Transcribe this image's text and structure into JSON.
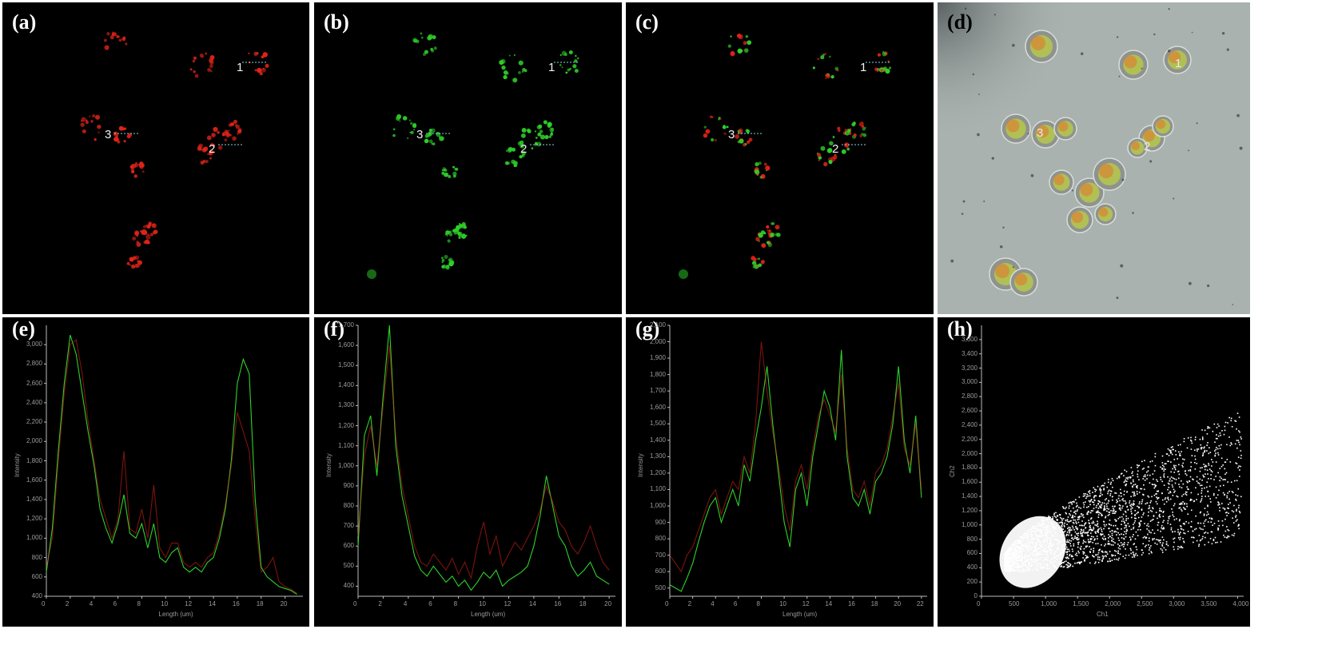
{
  "figure": {
    "panels": [
      {
        "id": "a",
        "label": "(a)",
        "channel": "red",
        "color": "#e02418"
      },
      {
        "id": "b",
        "label": "(b)",
        "channel": "green",
        "color": "#2fd12a"
      },
      {
        "id": "c",
        "label": "(c)",
        "channel": "merge"
      },
      {
        "id": "d",
        "label": "(d)",
        "channel": "brightfield-overlay"
      },
      {
        "id": "e",
        "label": "(e)"
      },
      {
        "id": "f",
        "label": "(f)"
      },
      {
        "id": "g",
        "label": "(g)"
      },
      {
        "id": "h",
        "label": "(h)"
      }
    ],
    "roi_labels": [
      "1",
      "2",
      "3"
    ]
  },
  "colors": {
    "red_channel": "#e02418",
    "green_channel": "#2fd12a",
    "background": "#000000",
    "brightfield": "#a9b2ae"
  },
  "chart_data": [
    {
      "panel": "e",
      "type": "line",
      "xlabel": "Length (um)",
      "ylabel": "Intensity",
      "xlim": [
        0,
        21.5
      ],
      "ylim": [
        400,
        3200
      ],
      "xticks": [
        "0",
        "2",
        "4",
        "6",
        "8",
        "10",
        "12",
        "14",
        "16",
        "18",
        "20"
      ],
      "yticks": [
        "400",
        "600",
        "800",
        "1,000",
        "1,200",
        "1,400",
        "1,600",
        "1,800",
        "2,000",
        "2,200",
        "2,400",
        "2,600",
        "2,800",
        "3,000"
      ],
      "series": [
        {
          "color": "#2fd12a",
          "x": [
            0,
            0.5,
            1,
            1.5,
            2,
            2.5,
            3,
            3.5,
            4,
            4.5,
            5,
            5.5,
            6,
            6.5,
            7,
            7.5,
            8,
            8.5,
            9,
            9.5,
            10,
            10.5,
            11,
            11.5,
            12,
            12.5,
            13,
            13.5,
            14,
            14.5,
            15,
            15.5,
            16,
            16.5,
            17,
            17.5,
            18,
            18.5,
            19,
            19.5,
            20,
            20.5,
            21
          ],
          "y": [
            650,
            1100,
            1900,
            2600,
            3100,
            2900,
            2500,
            2100,
            1750,
            1300,
            1100,
            950,
            1150,
            1450,
            1050,
            1000,
            1150,
            900,
            1150,
            800,
            750,
            850,
            900,
            700,
            650,
            700,
            650,
            750,
            800,
            1000,
            1300,
            1800,
            2600,
            2850,
            2700,
            1400,
            700,
            600,
            550,
            500,
            480,
            460,
            420
          ]
        },
        {
          "color": "#e02418",
          "x": [
            0,
            0.5,
            1,
            1.5,
            2,
            2.5,
            3,
            3.5,
            4,
            4.5,
            5,
            5.5,
            6,
            6.5,
            7,
            7.5,
            8,
            8.5,
            9,
            9.5,
            10,
            10.5,
            11,
            11.5,
            12,
            12.5,
            13,
            13.5,
            14,
            14.5,
            15,
            15.5,
            16,
            16.5,
            17,
            17.5,
            18,
            18.5,
            19,
            19.5,
            20,
            20.5,
            21
          ],
          "y": [
            700,
            1000,
            1800,
            2500,
            3000,
            3050,
            2700,
            2200,
            1800,
            1400,
            1200,
            1000,
            1200,
            1900,
            1100,
            1050,
            1300,
            1000,
            1550,
            900,
            800,
            950,
            950,
            750,
            700,
            750,
            700,
            800,
            850,
            1050,
            1350,
            1750,
            2300,
            2100,
            1900,
            1200,
            650,
            700,
            800,
            550,
            500,
            470,
            430
          ]
        }
      ]
    },
    {
      "panel": "f",
      "type": "line",
      "xlabel": "Length (um)",
      "ylabel": "Intensity",
      "xlim": [
        0,
        20.5
      ],
      "ylim": [
        350,
        1700
      ],
      "xticks": [
        "0",
        "2",
        "4",
        "6",
        "8",
        "10",
        "12",
        "14",
        "16",
        "18",
        "20"
      ],
      "yticks": [
        "400",
        "500",
        "600",
        "700",
        "800",
        "900",
        "1,000",
        "1,100",
        "1,200",
        "1,300",
        "1,400",
        "1,500",
        "1,600",
        "1,700"
      ],
      "series": [
        {
          "color": "#2fd12a",
          "x": [
            0,
            0.5,
            1,
            1.5,
            2,
            2.5,
            3,
            3.5,
            4,
            4.5,
            5,
            5.5,
            6,
            6.5,
            7,
            7.5,
            8,
            8.5,
            9,
            9.5,
            10,
            10.5,
            11,
            11.5,
            12,
            12.5,
            13,
            13.5,
            14,
            14.5,
            15,
            15.5,
            16,
            16.5,
            17,
            17.5,
            18,
            18.5,
            19,
            19.5,
            20
          ],
          "y": [
            600,
            1150,
            1250,
            950,
            1350,
            1700,
            1100,
            850,
            700,
            550,
            480,
            450,
            500,
            460,
            420,
            450,
            400,
            430,
            380,
            420,
            470,
            440,
            480,
            400,
            430,
            450,
            470,
            500,
            600,
            750,
            950,
            800,
            650,
            600,
            500,
            450,
            480,
            520,
            450,
            430,
            410
          ]
        },
        {
          "color": "#e02418",
          "x": [
            0,
            0.5,
            1,
            1.5,
            2,
            2.5,
            3,
            3.5,
            4,
            4.5,
            5,
            5.5,
            6,
            6.5,
            7,
            7.5,
            8,
            8.5,
            9,
            9.5,
            10,
            10.5,
            11,
            11.5,
            12,
            12.5,
            13,
            13.5,
            14,
            14.5,
            15,
            15.5,
            16,
            16.5,
            17,
            17.5,
            18,
            18.5,
            19,
            19.5,
            20
          ],
          "y": [
            650,
            1050,
            1200,
            1000,
            1300,
            1600,
            1150,
            900,
            750,
            600,
            520,
            500,
            560,
            520,
            480,
            540,
            460,
            520,
            440,
            600,
            720,
            560,
            650,
            500,
            560,
            620,
            580,
            640,
            700,
            780,
            900,
            820,
            720,
            680,
            600,
            560,
            620,
            700,
            600,
            520,
            480
          ]
        }
      ]
    },
    {
      "panel": "g",
      "type": "line",
      "xlabel": "Length (um)",
      "ylabel": "Intensity",
      "xlim": [
        0,
        22.5
      ],
      "ylim": [
        450,
        2100
      ],
      "xticks": [
        "0",
        "2",
        "4",
        "6",
        "8",
        "10",
        "12",
        "14",
        "16",
        "18",
        "20",
        "22"
      ],
      "yticks": [
        "500",
        "600",
        "700",
        "800",
        "900",
        "1,000",
        "1,100",
        "1,200",
        "1,300",
        "1,400",
        "1,500",
        "1,600",
        "1,700",
        "1,800",
        "1,900",
        "2,000",
        "2,100"
      ],
      "series": [
        {
          "color": "#2fd12a",
          "x": [
            0,
            0.5,
            1,
            1.5,
            2,
            2.5,
            3,
            3.5,
            4,
            4.5,
            5,
            5.5,
            6,
            6.5,
            7,
            7.5,
            8,
            8.5,
            9,
            9.5,
            10,
            10.5,
            11,
            11.5,
            12,
            12.5,
            13,
            13.5,
            14,
            14.5,
            15,
            15.5,
            16,
            16.5,
            17,
            17.5,
            18,
            18.5,
            19,
            19.5,
            20,
            20.5,
            21,
            21.5,
            22
          ],
          "y": [
            520,
            500,
            480,
            560,
            650,
            780,
            900,
            1000,
            1050,
            900,
            1000,
            1100,
            1000,
            1250,
            1150,
            1400,
            1600,
            1850,
            1500,
            1200,
            900,
            750,
            1100,
            1200,
            1000,
            1300,
            1500,
            1700,
            1600,
            1400,
            1950,
            1300,
            1050,
            1000,
            1100,
            950,
            1150,
            1200,
            1300,
            1500,
            1850,
            1400,
            1200,
            1550,
            1050
          ]
        },
        {
          "color": "#e02418",
          "x": [
            0,
            0.5,
            1,
            1.5,
            2,
            2.5,
            3,
            3.5,
            4,
            4.5,
            5,
            5.5,
            6,
            6.5,
            7,
            7.5,
            8,
            8.5,
            9,
            9.5,
            10,
            10.5,
            11,
            11.5,
            12,
            12.5,
            13,
            13.5,
            14,
            14.5,
            15,
            15.5,
            16,
            16.5,
            17,
            17.5,
            18,
            18.5,
            19,
            19.5,
            20,
            20.5,
            21,
            21.5,
            22
          ],
          "y": [
            700,
            650,
            600,
            700,
            750,
            850,
            950,
            1050,
            1100,
            950,
            1050,
            1150,
            1100,
            1300,
            1200,
            1500,
            2000,
            1700,
            1450,
            1250,
            1000,
            850,
            1150,
            1250,
            1100,
            1350,
            1550,
            1650,
            1550,
            1450,
            1800,
            1350,
            1100,
            1050,
            1150,
            1000,
            1200,
            1250,
            1350,
            1550,
            1750,
            1350,
            1250,
            1500,
            1100
          ]
        }
      ]
    },
    {
      "panel": "h",
      "type": "scatter",
      "xlabel": "Ch1",
      "ylabel": "Ch2",
      "xlim": [
        0,
        4095
      ],
      "ylim": [
        0,
        3800
      ],
      "xticks": [
        "0",
        "500",
        "1,000",
        "1,500",
        "2,000",
        "2,500",
        "3,000",
        "3,500",
        "4,000"
      ],
      "yticks": [
        "0",
        "200",
        "400",
        "600",
        "800",
        "1,000",
        "1,200",
        "1,400",
        "1,600",
        "1,800",
        "2,000",
        "2,200",
        "2,400",
        "2,600",
        "2,800",
        "3,000",
        "3,200",
        "3,400",
        "3,600"
      ],
      "series": [
        {
          "color": "#ffffff",
          "x": [],
          "y": []
        }
      ]
    }
  ]
}
